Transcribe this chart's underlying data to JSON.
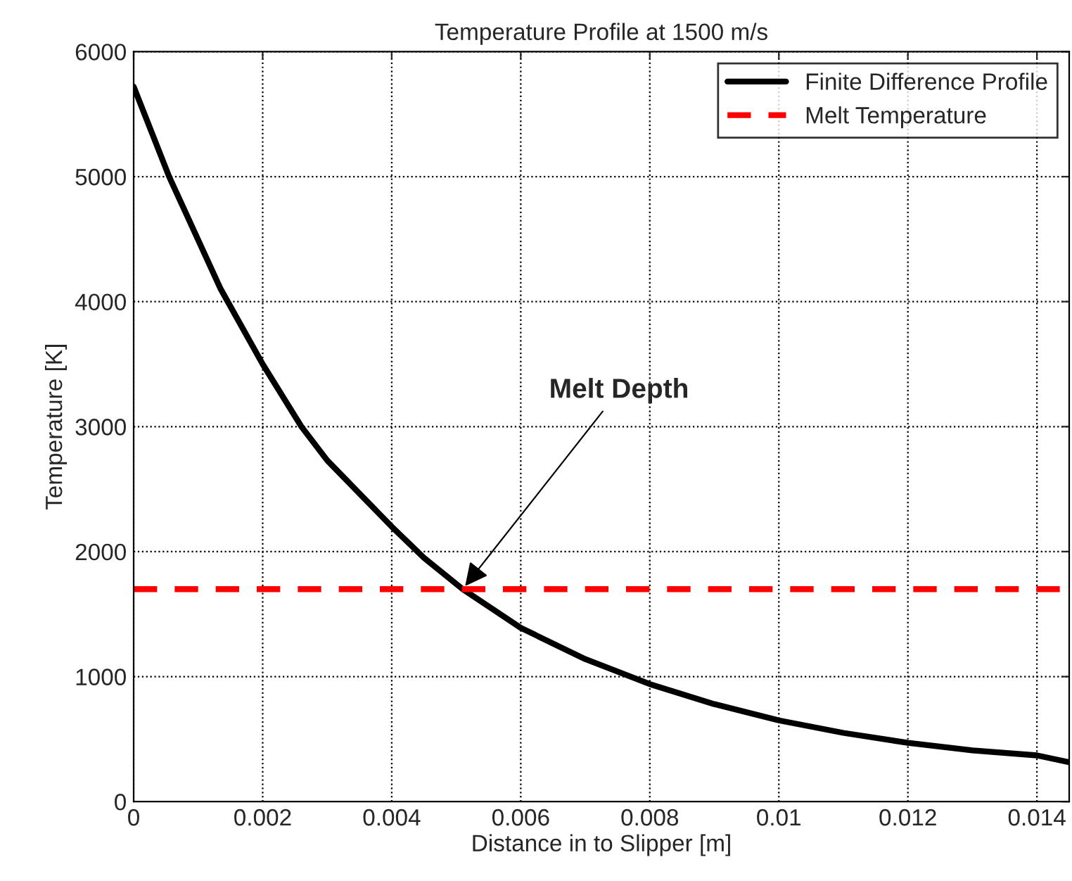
{
  "chart_data": {
    "type": "line",
    "title": "Temperature Profile at 1500 m/s",
    "xlabel": "Distance in to Slipper [m]",
    "ylabel": "Temperature [K]",
    "series": [
      {
        "name": "Finite Difference Profile",
        "color": "#000000",
        "x": [
          0,
          0.00055,
          0.00135,
          0.002,
          0.0026,
          0.003,
          0.004,
          0.0045,
          0.0051,
          0.006,
          0.007,
          0.008,
          0.009,
          0.01,
          0.011,
          0.012,
          0.013,
          0.014,
          0.0145
        ],
        "values": [
          5720,
          5000,
          4100,
          3500,
          3000,
          2730,
          2200,
          1950,
          1700,
          1390,
          1140,
          940,
          780,
          650,
          550,
          470,
          410,
          370,
          315
        ]
      }
    ],
    "ref_lines": [
      {
        "axis": "y",
        "value": 1700,
        "label": "Melt Temperature",
        "color": "#ff0000",
        "line_style": "dashed"
      }
    ],
    "annotations": [
      {
        "text": "Melt Depth",
        "x": 0.0051,
        "y": 1700
      }
    ],
    "xlim": [
      0,
      0.0145
    ],
    "xticks": [
      {
        "value": 0,
        "label": "0"
      },
      0.002,
      0.004,
      0.006,
      0.008,
      0.01,
      0.012,
      0.014
    ],
    "ylim": [
      0,
      6000
    ],
    "yticks": [
      0,
      1000,
      2000,
      3000,
      4000,
      5000,
      6000
    ],
    "grid": true,
    "legend": "top right",
    "line_style": "solid",
    "marker": "none"
  }
}
